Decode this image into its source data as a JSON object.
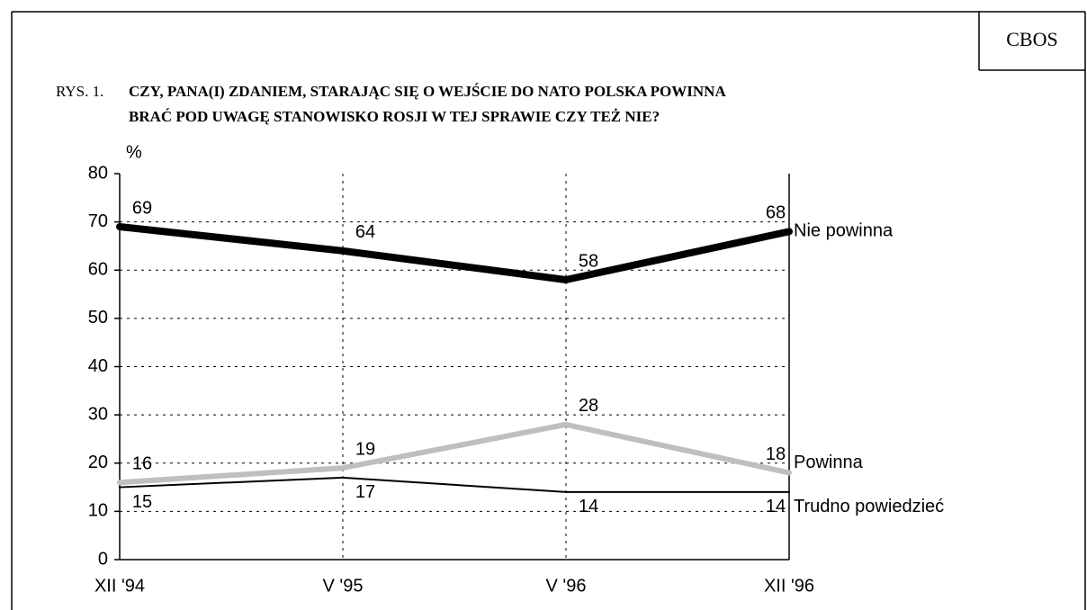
{
  "source": "CBOS",
  "chart_data": {
    "type": "line",
    "figure_label": "RYS. 1.",
    "title": [
      "CZY, PANA(I) ZDANIEM, STARAJĄC SIĘ O WEJŚCIE DO NATO POLSKA POWINNA",
      "BRAĆ POD UWAGĘ STANOWISKO ROSJI W TEJ SPRAWIE CZY TEŻ NIE?"
    ],
    "y_label": "%",
    "categories": [
      "XII '94",
      "V '95",
      "V '96",
      "XII '96"
    ],
    "series": [
      {
        "name": "Nie powinna",
        "color": "#000000",
        "values": [
          69,
          64,
          58,
          68
        ]
      },
      {
        "name": "Powinna",
        "color": "#bfbfbf",
        "values": [
          16,
          19,
          28,
          18
        ]
      },
      {
        "name": "Trudno powiedzieć",
        "color": "#000000",
        "values": [
          15,
          17,
          14,
          14
        ]
      }
    ],
    "ylim": [
      0,
      80
    ],
    "yticks": [
      0,
      10,
      20,
      30,
      40,
      50,
      60,
      70,
      80
    ],
    "grid": true
  }
}
